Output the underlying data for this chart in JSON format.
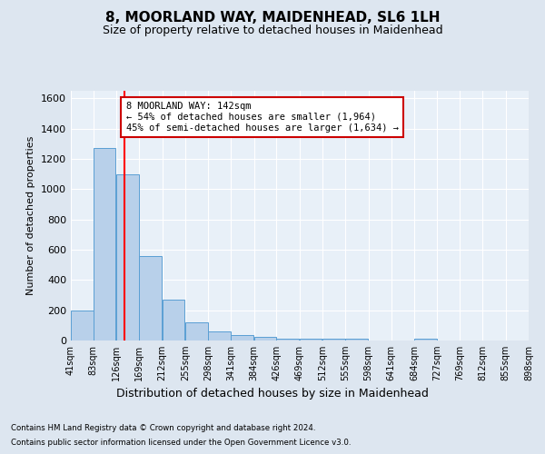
{
  "title": "8, MOORLAND WAY, MAIDENHEAD, SL6 1LH",
  "subtitle": "Size of property relative to detached houses in Maidenhead",
  "xlabel": "Distribution of detached houses by size in Maidenhead",
  "ylabel": "Number of detached properties",
  "footer_line1": "Contains HM Land Registry data © Crown copyright and database right 2024.",
  "footer_line2": "Contains public sector information licensed under the Open Government Licence v3.0.",
  "bar_edges": [
    41,
    83,
    126,
    169,
    212,
    255,
    298,
    341,
    384,
    426,
    469,
    512,
    555,
    598,
    641,
    684,
    727,
    769,
    812,
    855,
    898
  ],
  "bar_heights": [
    200,
    1270,
    1100,
    560,
    270,
    120,
    60,
    35,
    25,
    15,
    12,
    12,
    12,
    0,
    0,
    15,
    0,
    0,
    0,
    0
  ],
  "bar_color": "#b8d0ea",
  "bar_edge_color": "#5a9fd4",
  "red_line_x": 142,
  "annotation_text": "8 MOORLAND WAY: 142sqm\n← 54% of detached houses are smaller (1,964)\n45% of semi-detached houses are larger (1,634) →",
  "annotation_box_color": "#ffffff",
  "annotation_box_edge_color": "#cc0000",
  "ylim": [
    0,
    1650
  ],
  "yticks": [
    0,
    200,
    400,
    600,
    800,
    1000,
    1200,
    1400,
    1600
  ],
  "bg_color": "#dde6f0",
  "plot_bg_color": "#e8f0f8",
  "grid_color": "#ffffff",
  "title_fontsize": 11,
  "subtitle_fontsize": 9,
  "ylabel_fontsize": 8,
  "xlabel_fontsize": 9,
  "tick_label_fontsize": 7,
  "ytick_fontsize": 8,
  "annotation_fontsize": 7.5,
  "tick_labels": [
    "41sqm",
    "83sqm",
    "126sqm",
    "169sqm",
    "212sqm",
    "255sqm",
    "298sqm",
    "341sqm",
    "384sqm",
    "426sqm",
    "469sqm",
    "512sqm",
    "555sqm",
    "598sqm",
    "641sqm",
    "684sqm",
    "727sqm",
    "769sqm",
    "812sqm",
    "855sqm",
    "898sqm"
  ]
}
